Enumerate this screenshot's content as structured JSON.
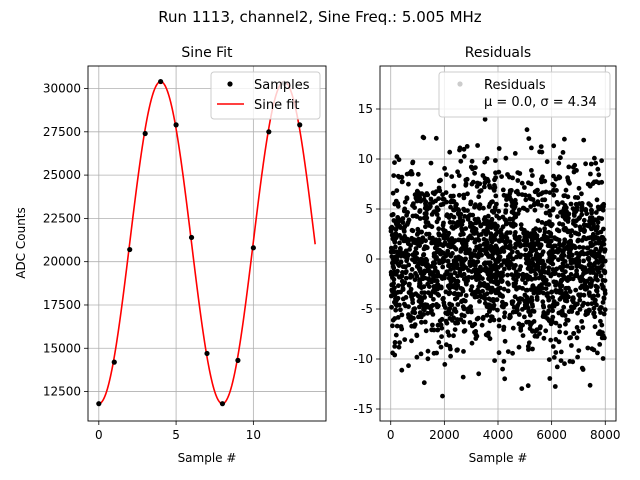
{
  "suptitle": "Run 1113, channel2, Sine Freq.: 5.005 MHz",
  "chart_data": [
    {
      "type": "line",
      "title": "Sine Fit",
      "xlabel": "Sample #",
      "ylabel": "ADC Counts",
      "xlim": [
        -0.7,
        14.7
      ],
      "ylim": [
        10800,
        31300
      ],
      "xticks": [
        0,
        5,
        10
      ],
      "yticks": [
        12500,
        15000,
        17500,
        20000,
        22500,
        25000,
        27500,
        30000
      ],
      "grid": true,
      "legend_position": "top-right",
      "samples": {
        "name": "Samples",
        "color": "#000000",
        "x": [
          0,
          1,
          2,
          3,
          4,
          5,
          6,
          7,
          8,
          9,
          10,
          11,
          12,
          13
        ],
        "y": [
          11800,
          14200,
          20700,
          27400,
          30400,
          27900,
          21400,
          14700,
          11800,
          14300,
          20800,
          27500,
          30300,
          27900
        ]
      },
      "fit": {
        "name": "Sine fit",
        "color": "#ff0000",
        "offset": 21100,
        "amplitude": 9300,
        "period_samples": 7.99,
        "peak_sample": 4.0,
        "x_range": [
          0,
          14
        ]
      }
    },
    {
      "type": "scatter",
      "title": "Residuals",
      "xlabel": "Sample #",
      "xlim": [
        -400,
        8400
      ],
      "ylim": [
        -16.2,
        19.3
      ],
      "xticks": [
        0,
        2000,
        4000,
        6000,
        8000
      ],
      "yticks": [
        -15,
        -10,
        -5,
        0,
        5,
        10,
        15
      ],
      "grid": true,
      "legend_position": "top-right",
      "legend_entries": [
        "Residuals",
        "μ = 0.0, σ = 4.34"
      ],
      "series": {
        "name": "Residuals",
        "color": "#000000",
        "n_points": 8000,
        "x_range": [
          0,
          7999
        ],
        "mean": 0.0,
        "std": 4.34
      }
    }
  ]
}
